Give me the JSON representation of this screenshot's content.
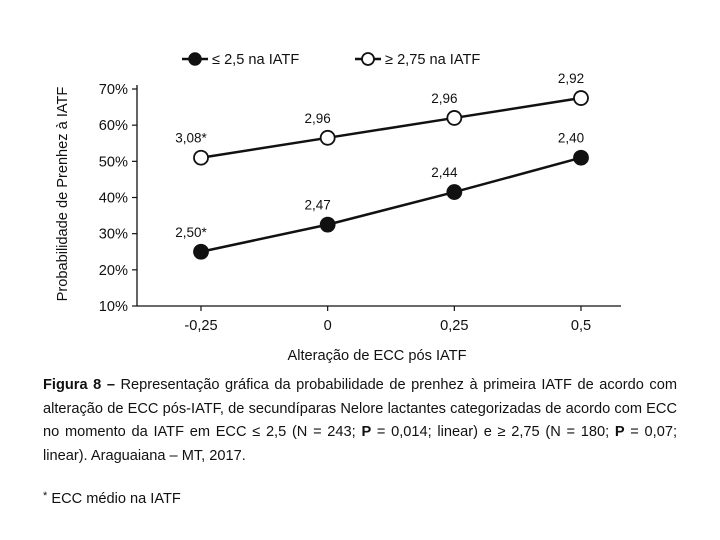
{
  "chart_data": {
    "type": "line",
    "xlabel": "Alteração de ECC pós IATF",
    "ylabel": "Probabilidade de Prenhez à IATF",
    "x": [
      -0.25,
      0,
      0.25,
      0.5
    ],
    "x_tick_labels": [
      "-0,25",
      "0",
      "0,25",
      "0,5"
    ],
    "ylim": [
      10,
      70
    ],
    "y_ticks": [
      10,
      20,
      30,
      40,
      50,
      60,
      70
    ],
    "y_tick_labels": [
      "10%",
      "20%",
      "30%",
      "40%",
      "50%",
      "60%",
      "70%"
    ],
    "legend_position": "top",
    "series": [
      {
        "name": "≤ 2,5 na IATF",
        "marker": "filled",
        "values": [
          25,
          32.5,
          41.5,
          51
        ],
        "point_labels": [
          "2,50*",
          "2,47",
          "2,44",
          "2,40"
        ]
      },
      {
        "name": "≥ 2,75 na IATF",
        "marker": "open",
        "values": [
          51,
          56.5,
          62,
          67.5
        ],
        "point_labels": [
          "3,08*",
          "2,96",
          "2,96",
          "2,92"
        ]
      }
    ]
  },
  "caption": {
    "label": "Figura 8 –",
    "text_1": " Representação gráfica da probabilidade de prenhez à primeira IATF de acordo com alteração de ECC pós-IATF, de secundíparas Nelore lactantes categorizadas de acordo com ECC no momento da IATF em ECC ≤ 2,5 (N = 243; ",
    "p_label_1": "P",
    "text_2": " = 0,014; linear) e ≥ 2,75 (N = 180; ",
    "p_label_2": "P",
    "text_3": " = 0,07; linear). Araguaiana – MT, 2017."
  },
  "footnote": {
    "mark": "*",
    "text": " ECC médio na IATF"
  }
}
